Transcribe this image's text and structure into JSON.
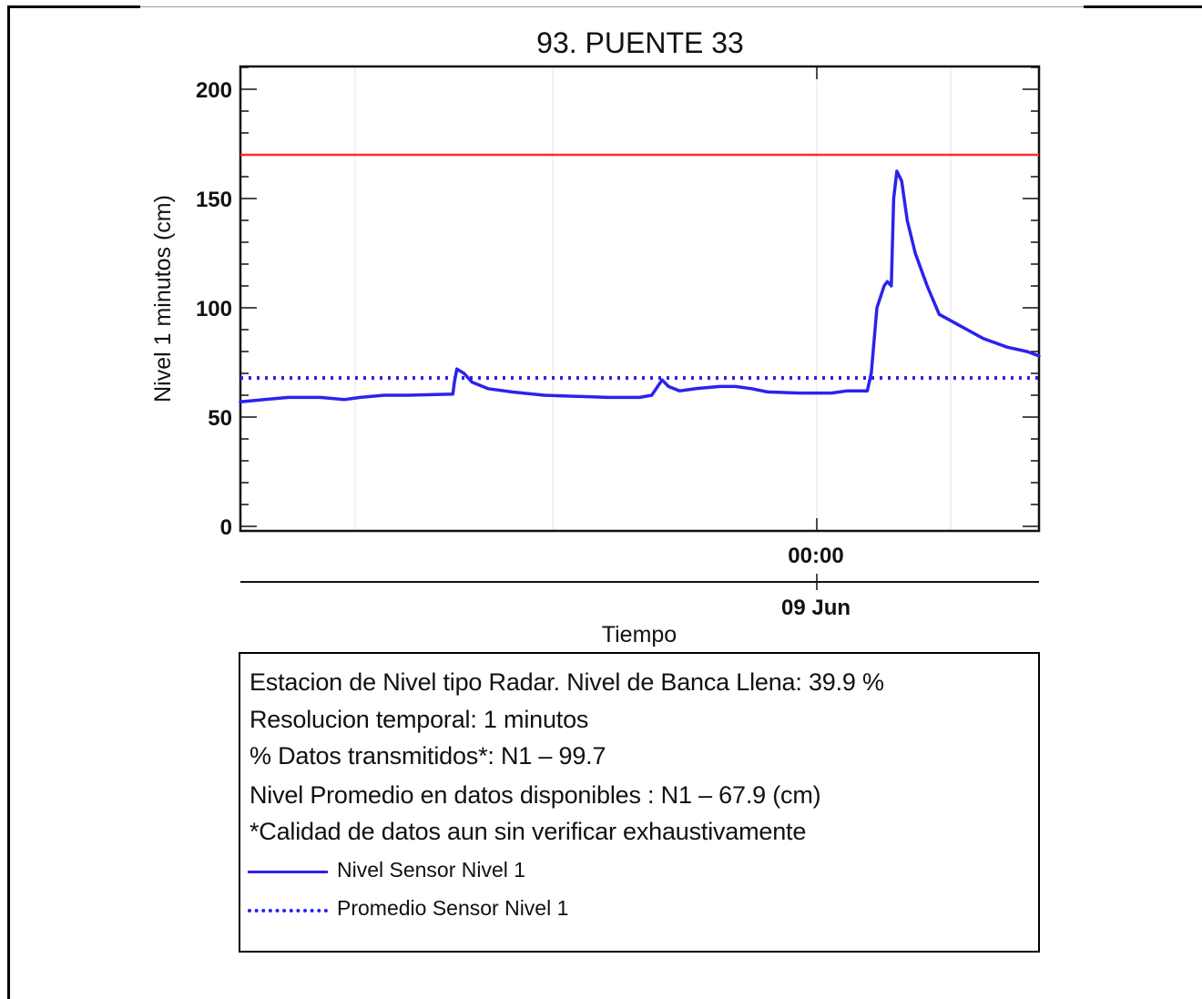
{
  "chart_data": {
    "type": "line",
    "title": "93. PUENTE 33",
    "xlabel": "Tiempo",
    "ylabel": "Nivel 1 minutos (cm)",
    "ylim": [
      0,
      210
    ],
    "yticks": [
      0,
      50,
      100,
      150,
      200
    ],
    "x_tick_label": "00:00",
    "x_date_label": "09 Jun",
    "grid": "vertical-only",
    "threshold": {
      "value": 170,
      "color": "#ff2a2a"
    },
    "series": [
      {
        "name": "Nivel Sensor Nivel 1",
        "style": "solid",
        "color": "#2b22ee",
        "points": [
          [
            0.0,
            57
          ],
          [
            0.03,
            58
          ],
          [
            0.06,
            59
          ],
          [
            0.1,
            59
          ],
          [
            0.13,
            58
          ],
          [
            0.15,
            59
          ],
          [
            0.18,
            60
          ],
          [
            0.21,
            60
          ],
          [
            0.266,
            60.5
          ],
          [
            0.268,
            66
          ],
          [
            0.271,
            72
          ],
          [
            0.28,
            70
          ],
          [
            0.29,
            66
          ],
          [
            0.31,
            63
          ],
          [
            0.34,
            61.5
          ],
          [
            0.38,
            60
          ],
          [
            0.42,
            59.5
          ],
          [
            0.46,
            59
          ],
          [
            0.5,
            59
          ],
          [
            0.515,
            60
          ],
          [
            0.528,
            67
          ],
          [
            0.536,
            64
          ],
          [
            0.55,
            62
          ],
          [
            0.57,
            63
          ],
          [
            0.6,
            64
          ],
          [
            0.62,
            64
          ],
          [
            0.64,
            63
          ],
          [
            0.66,
            61.5
          ],
          [
            0.7,
            61
          ],
          [
            0.74,
            61
          ],
          [
            0.76,
            62
          ],
          [
            0.785,
            62
          ],
          [
            0.79,
            70
          ],
          [
            0.797,
            100
          ],
          [
            0.806,
            110
          ],
          [
            0.81,
            112
          ],
          [
            0.815,
            110
          ],
          [
            0.818,
            150
          ],
          [
            0.822,
            162.5
          ],
          [
            0.828,
            158
          ],
          [
            0.835,
            140
          ],
          [
            0.845,
            125
          ],
          [
            0.86,
            110
          ],
          [
            0.875,
            97
          ],
          [
            0.9,
            92
          ],
          [
            0.93,
            86
          ],
          [
            0.96,
            82
          ],
          [
            0.985,
            80
          ],
          [
            1.0,
            78
          ]
        ]
      },
      {
        "name": "Promedio Sensor Nivel 1",
        "style": "dotted",
        "color": "#2b22ee",
        "constant": 67.9
      }
    ]
  },
  "info": {
    "line1": "Estacion de Nivel tipo Radar. Nivel de Banca Llena: 39.9 %",
    "line2": "Resolucion temporal: 1 minutos",
    "line3": "% Datos transmitidos*: N1 – 99.7",
    "line4": "Nivel Promedio en datos disponibles : N1 – 67.9 (cm)",
    "line5": "*Calidad de datos aun sin verificar exhaustivamente",
    "legend_solid": "Nivel Sensor Nivel 1",
    "legend_dotted": "Promedio Sensor Nivel 1"
  }
}
